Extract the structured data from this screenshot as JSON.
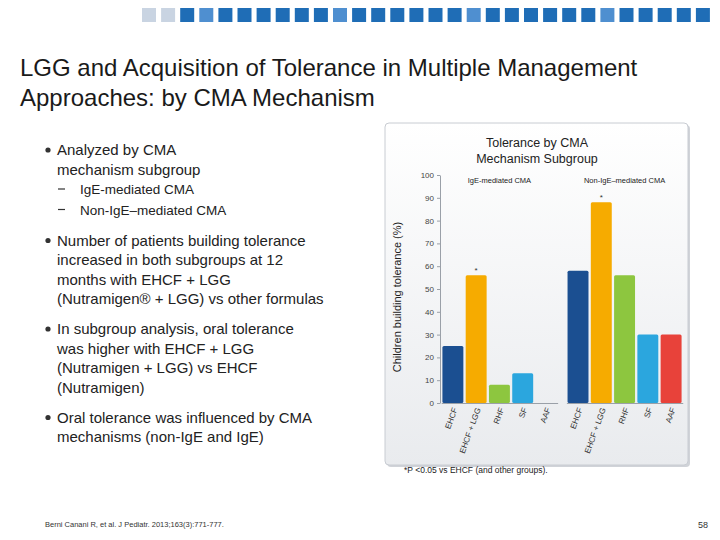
{
  "slide": {
    "title": [
      "LGG and Acquisition of Tolerance in Multiple Management",
      "Approaches: by CMA Mechanism"
    ],
    "bullets": [
      {
        "lines": [
          "Analyzed by CMA",
          "mechanism subgroup"
        ],
        "sub": [
          "IgE-mediated CMA",
          "Non-IgE–mediated CMA"
        ]
      },
      {
        "lines": [
          "Number of patients building tolerance",
          "increased in both subgroups at 12",
          "months with EHCF + LGG",
          "(Nutramigen® + LGG) vs other formulas"
        ]
      },
      {
        "lines": [
          "In subgroup analysis, oral tolerance",
          "was higher with EHCF + LGG",
          "(Nutramigen + LGG) vs EHCF",
          "(Nutramigen)"
        ]
      },
      {
        "lines": [
          "Oral tolerance was influenced by CMA",
          "mechanisms (non-IgE and IgE)"
        ]
      }
    ],
    "footnote": "*P <0.05 vs EHCF (and other groups).",
    "citation": "Berni Canani R, et al. J Pediatr. 2013;163(3):771-777.",
    "page": 58
  },
  "chart_data": {
    "type": "bar",
    "title": [
      "Tolerance by CMA",
      "Mechanism Subgroup"
    ],
    "y_label": "Children building tolerance (%)",
    "ylim": [
      0,
      100
    ],
    "yticks": [
      0,
      10,
      20,
      30,
      40,
      50,
      60,
      70,
      80,
      90,
      100
    ],
    "grid": false,
    "series": [
      {
        "name": "IgE-mediated CMA",
        "categories": [
          "EHCF",
          "EHCF + LGG",
          "RHF",
          "SF",
          "AAF"
        ],
        "values": [
          25,
          56,
          8,
          13,
          0
        ],
        "colors": [
          "#1b4f91",
          "#f6ab00",
          "#8dc63f",
          "#2ba6de",
          "#e8423a"
        ],
        "annotations": [
          null,
          "*",
          null,
          null,
          null
        ]
      },
      {
        "name": "Non-IgE–mediated CMA",
        "categories": [
          "EHCF",
          "EHCF + LGG",
          "RHF",
          "SF",
          "AAF"
        ],
        "values": [
          58,
          88,
          56,
          30,
          30
        ],
        "colors": [
          "#1b4f91",
          "#f6ab00",
          "#8dc63f",
          "#2ba6de",
          "#e8423a"
        ],
        "annotations": [
          null,
          "*",
          null,
          null,
          null
        ]
      }
    ]
  }
}
